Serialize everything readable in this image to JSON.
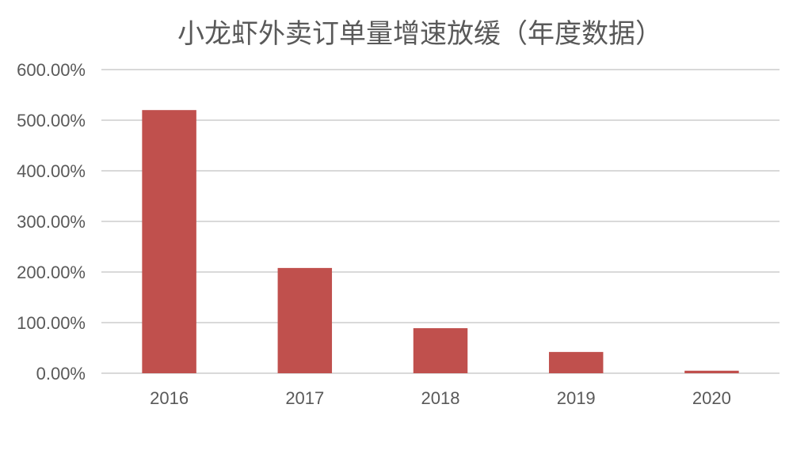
{
  "chart_data": {
    "type": "bar",
    "title": "小龙虾外卖订单量增速放缓（年度数据）",
    "categories": [
      "2016",
      "2017",
      "2018",
      "2019",
      "2020"
    ],
    "values": [
      520,
      208,
      89,
      42,
      5
    ],
    "ylim": [
      0,
      600
    ],
    "yticks": [
      0,
      100,
      200,
      300,
      400,
      500,
      600
    ],
    "ytick_labels": [
      "0.00%",
      "100.00%",
      "200.00%",
      "300.00%",
      "400.00%",
      "500.00%",
      "600.00%"
    ],
    "grid": true,
    "colors": {
      "bar": "#c0504d",
      "grid": "#d9d9d9",
      "text": "#595959"
    }
  }
}
